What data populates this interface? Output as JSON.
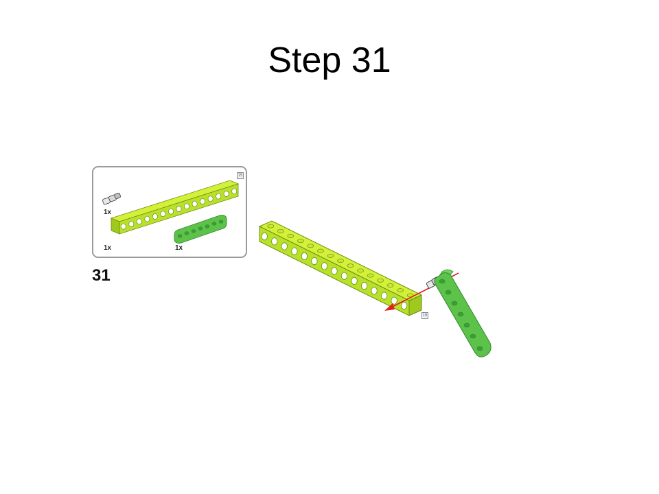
{
  "title": "Step 31",
  "step_number": "31",
  "parts": [
    {
      "name": "connector pin",
      "quantity": "1x"
    },
    {
      "name": "lime technic beam 15",
      "quantity": "1x"
    },
    {
      "name": "green technic liftarm 7",
      "quantity": "1x"
    }
  ],
  "scale_badge": "15",
  "colors": {
    "lime": "#b9e02a",
    "lime_dark": "#86b514",
    "green": "#5cc24a",
    "green_dark": "#2f8a2c",
    "arrow": "#e02020",
    "box_border": "#9a9a9a"
  }
}
